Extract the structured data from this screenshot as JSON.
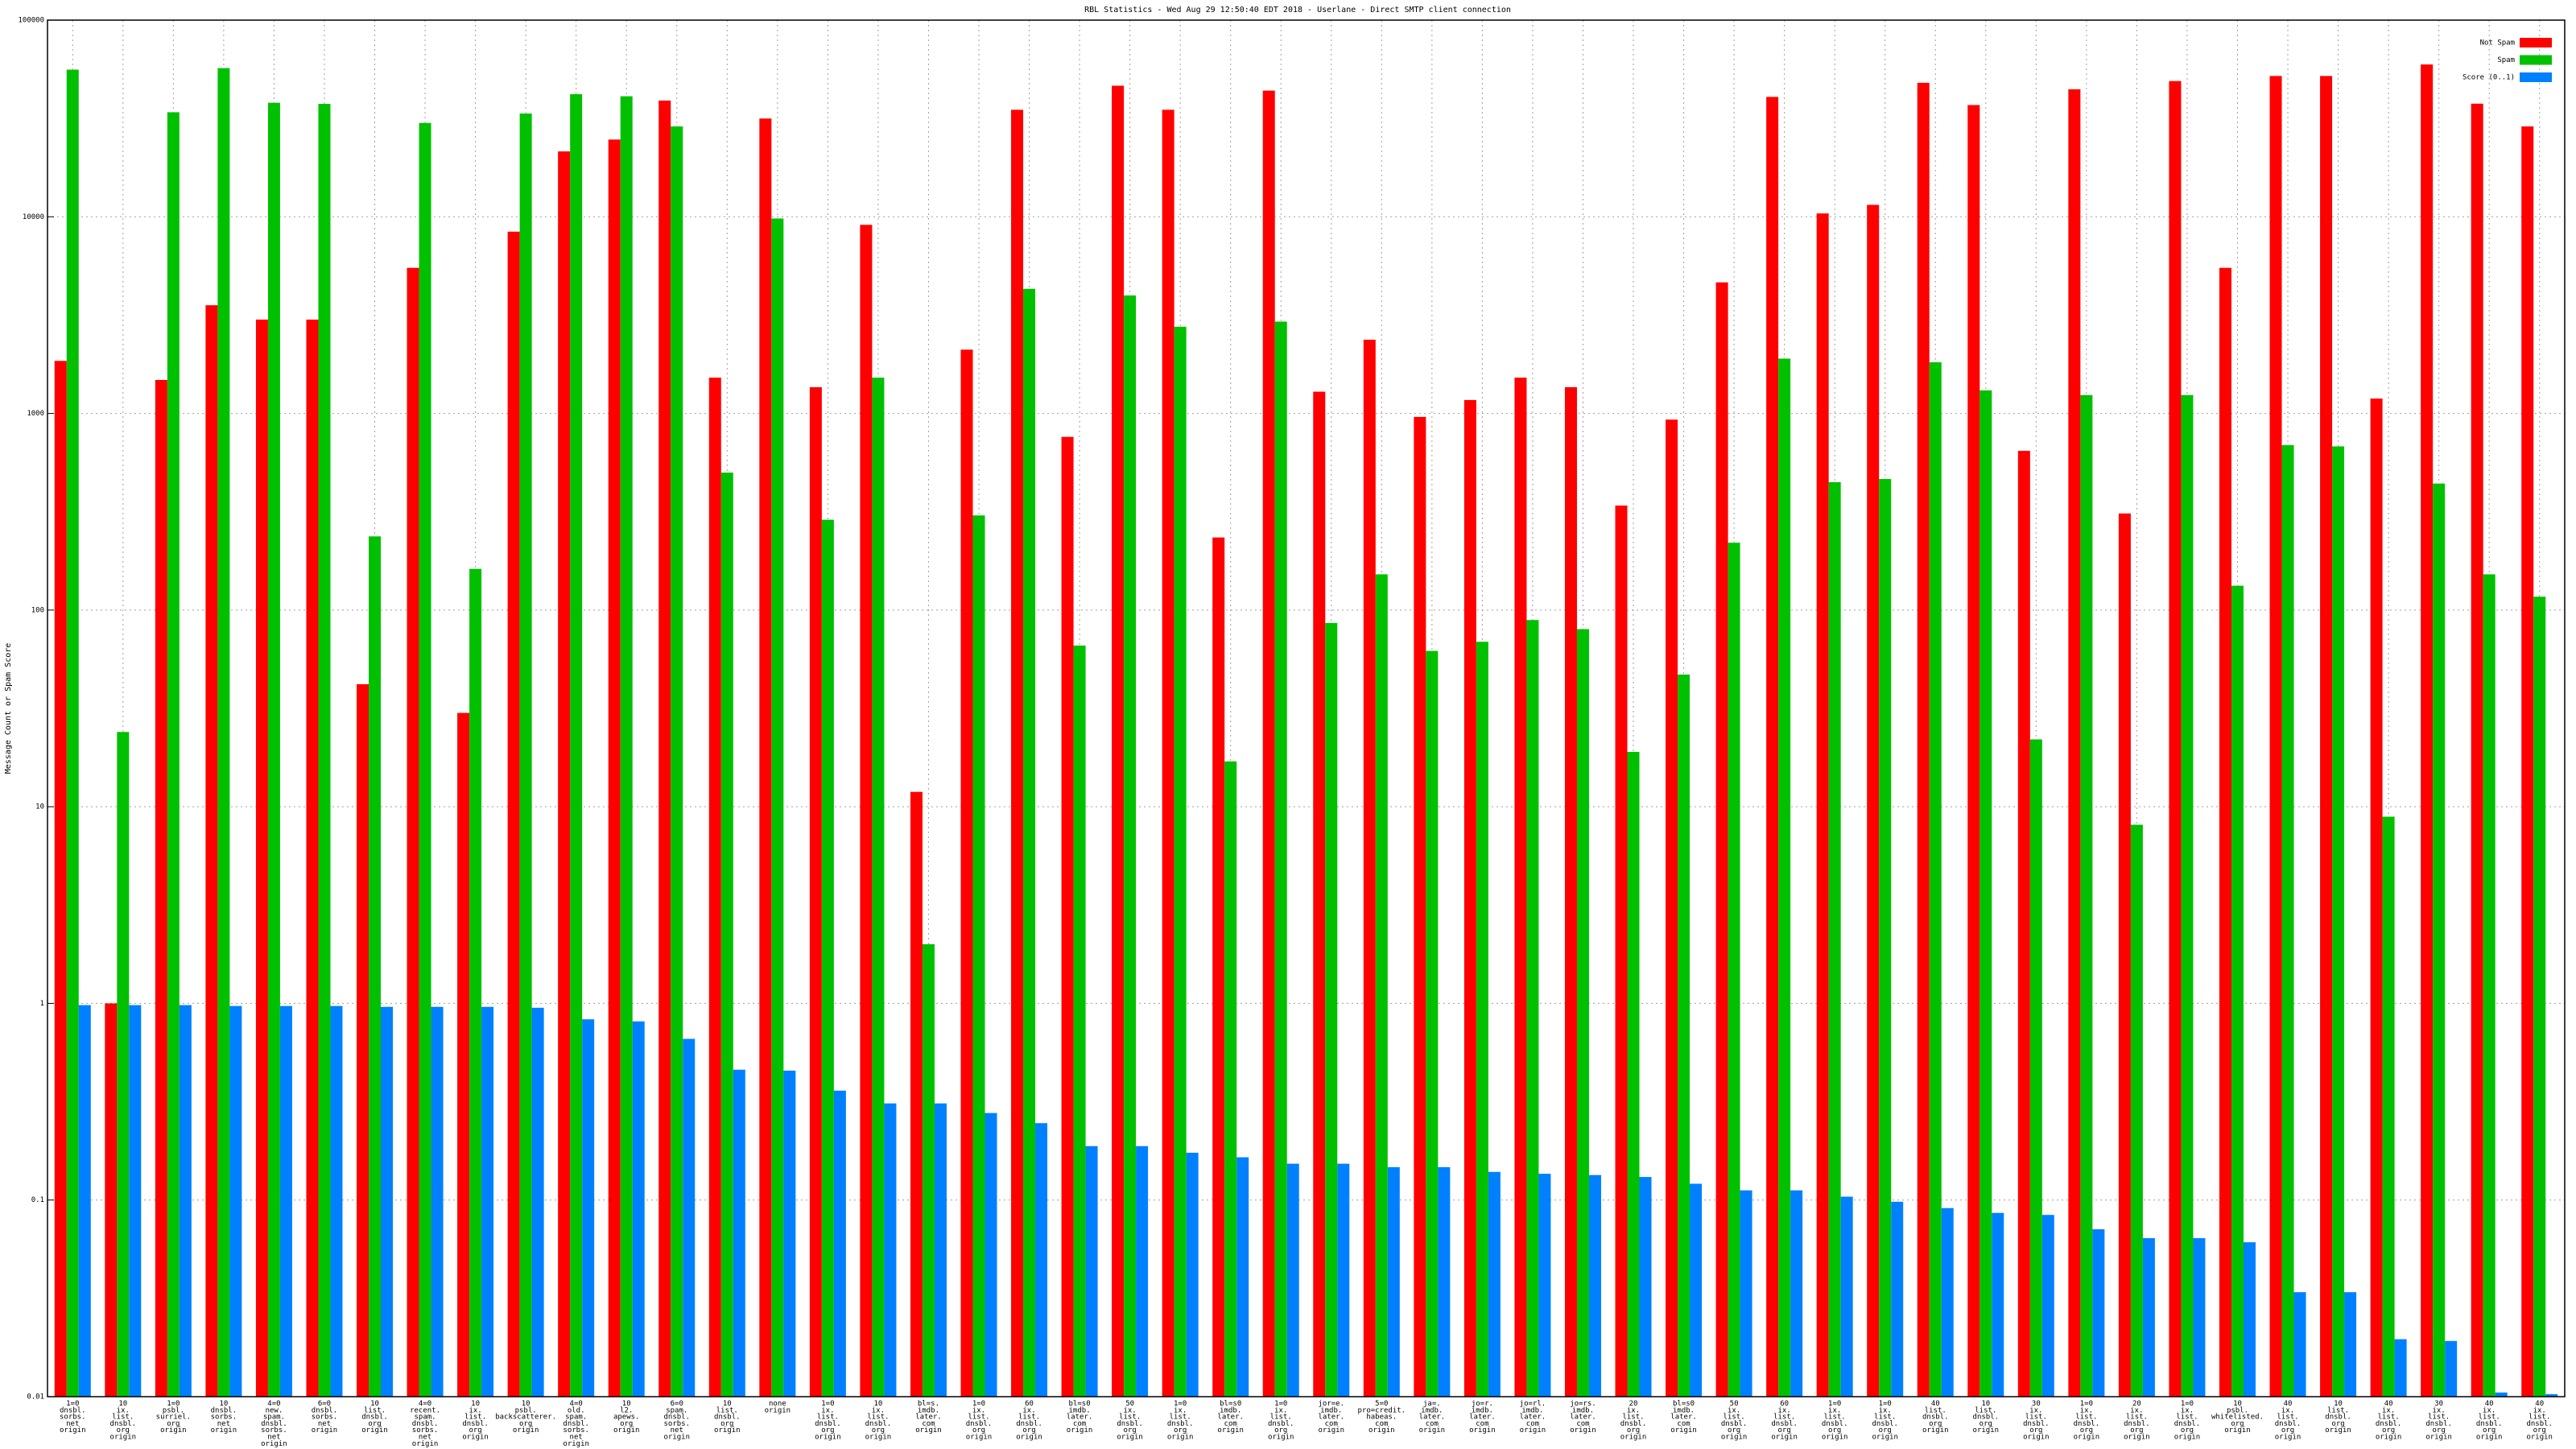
{
  "chart_data": {
    "type": "bar",
    "title": "RBL Statistics - Wed Aug 29 12:50:40 EDT 2018 - Userlane - Direct SMTP client connection",
    "y_label": "Message Count or Spam Score",
    "log_y": true,
    "grid": true,
    "legend_position": "top-right",
    "ylim": [
      0.01,
      100000
    ],
    "yticks": [
      0.01,
      0.1,
      1,
      10,
      100,
      1000,
      10000,
      100000
    ],
    "categories": [
      [
        "1=0",
        "dnsbl.",
        "sorbs.",
        "net",
        "origin"
      ],
      [
        "10",
        "ix.",
        "list.",
        "dnsbl.",
        "org",
        "origin"
      ],
      [
        "1=0",
        "psbl.",
        "surriel.",
        "org",
        "origin"
      ],
      [
        "10",
        "dnsbl.",
        "sorbs.",
        "net",
        "origin"
      ],
      [
        "4=0",
        "new.",
        "spam.",
        "dnsbl.",
        "sorbs.",
        "net",
        "origin"
      ],
      [
        "6=0",
        "dnsbl.",
        "sorbs.",
        "net",
        "origin"
      ],
      [
        "10",
        "list.",
        "dnsbl.",
        "org",
        "origin"
      ],
      [
        "4=0",
        "recent.",
        "spam.",
        "dnsbl.",
        "sorbs.",
        "net",
        "origin"
      ],
      [
        "10",
        "ix.",
        "list.",
        "dnsbl.",
        "org",
        "origin"
      ],
      [
        "10",
        "psbl.",
        "backscatterer.",
        "org",
        "origin"
      ],
      [
        "4=0",
        "old.",
        "spam.",
        "dnsbl.",
        "sorbs.",
        "net",
        "origin"
      ],
      [
        "10",
        "l2.",
        "apews.",
        "org",
        "origin"
      ],
      [
        "6=0",
        "spam.",
        "dnsbl.",
        "sorbs.",
        "net",
        "origin"
      ],
      [
        "10",
        "list.",
        "dnsbl.",
        "org",
        "origin"
      ],
      [
        "none",
        "origin"
      ],
      [
        "1=0",
        "ix.",
        "list.",
        "dnsbl.",
        "org",
        "origin"
      ],
      [
        "10",
        "ix.",
        "list.",
        "dnsbl.",
        "org",
        "origin"
      ],
      [
        "bl=s.",
        "imdb.",
        "later.",
        "com",
        "origin"
      ],
      [
        "1=0",
        "ix.",
        "list.",
        "dnsbl.",
        "org",
        "origin"
      ],
      [
        "60",
        "ix.",
        "list.",
        "dnsbl.",
        "org",
        "origin"
      ],
      [
        "bl=s0",
        "imdb.",
        "later.",
        "com",
        "origin"
      ],
      [
        "50",
        "ix.",
        "list.",
        "dnsbl.",
        "org",
        "origin"
      ],
      [
        "1=0",
        "ix.",
        "list.",
        "dnsbl.",
        "org",
        "origin"
      ],
      [
        "bl=s0",
        "imdb.",
        "later.",
        "com",
        "origin"
      ],
      [
        "1=0",
        "ix.",
        "list.",
        "dnsbl.",
        "org",
        "origin"
      ],
      [
        "jor=e.",
        "imdb.",
        "later.",
        "com",
        "origin"
      ],
      [
        "5=0",
        "pro=credit.",
        "habeas.",
        "com",
        "origin"
      ],
      [
        "ja=.",
        "imdb.",
        "later.",
        "com",
        "origin"
      ],
      [
        "jo=r.",
        "imdb.",
        "later.",
        "com",
        "origin"
      ],
      [
        "jo=rl.",
        "imdb.",
        "later.",
        "com",
        "origin"
      ],
      [
        "jo=rs.",
        "imdb.",
        "later.",
        "com",
        "origin"
      ],
      [
        "20",
        "ix.",
        "list.",
        "dnsbl.",
        "org",
        "origin"
      ],
      [
        "bl=s0",
        "imdb.",
        "later.",
        "com",
        "origin"
      ],
      [
        "50",
        "ix.",
        "list.",
        "dnsbl.",
        "org",
        "origin"
      ],
      [
        "60",
        "ix.",
        "list.",
        "dnsbl.",
        "org",
        "origin"
      ],
      [
        "1=0",
        "ix.",
        "list.",
        "dnsbl.",
        "org",
        "origin"
      ],
      [
        "1=0",
        "ix.",
        "list.",
        "dnsbl.",
        "org",
        "origin"
      ],
      [
        "40",
        "list.",
        "dnsbl.",
        "org",
        "origin"
      ],
      [
        "10",
        "list.",
        "dnsbl.",
        "org",
        "origin"
      ],
      [
        "30",
        "ix.",
        "list.",
        "dnsbl.",
        "org",
        "origin"
      ],
      [
        "1=0",
        "ix.",
        "list.",
        "dnsbl.",
        "org",
        "origin"
      ],
      [
        "20",
        "ix.",
        "list.",
        "dnsbl.",
        "org",
        "origin"
      ],
      [
        "1=0",
        "ix.",
        "list.",
        "dnsbl.",
        "org",
        "origin"
      ],
      [
        "10",
        "psbl.",
        "whitelisted.",
        "org",
        "origin"
      ],
      [
        "40",
        "ix.",
        "list.",
        "dnsbl.",
        "org",
        "origin"
      ],
      [
        "10",
        "list.",
        "dnsbl.",
        "org",
        "origin"
      ],
      [
        "40",
        "ix.",
        "list.",
        "dnsbl.",
        "org",
        "origin"
      ],
      [
        "30",
        "ix.",
        "list.",
        "dnsbl.",
        "org",
        "origin"
      ],
      [
        "40",
        "ix.",
        "list.",
        "dnsbl.",
        "org",
        "origin"
      ],
      [
        "40",
        "ix.",
        "list.",
        "dnsbl.",
        "org",
        "origin"
      ]
    ],
    "series": [
      {
        "name": "Not Spam",
        "color": "#ff0000",
        "values": [
          1850,
          1,
          1480,
          3550,
          3000,
          3000,
          42,
          5500,
          30,
          8400,
          21500,
          24700,
          39000,
          1520,
          31600,
          1360,
          9100,
          11.9,
          2110,
          35000,
          760,
          46400,
          35000,
          234,
          43800,
          1290,
          2370,
          960,
          1170,
          1520,
          1360,
          340,
          930,
          4640,
          40700,
          10400,
          11500,
          48000,
          37000,
          645,
          44500,
          310,
          49000,
          5500,
          52000,
          52000,
          1190,
          59500,
          37600,
          28800
        ]
      },
      {
        "name": "Spam",
        "color": "#00c000",
        "values": [
          56000,
          24,
          34000,
          57000,
          38000,
          37500,
          237,
          30000,
          162,
          33500,
          42000,
          41000,
          28800,
          500,
          9800,
          288,
          1520,
          2.0,
          303,
          4300,
          66,
          3980,
          2760,
          17,
          2930,
          86,
          152,
          62,
          69,
          89,
          80,
          19,
          47,
          220,
          1900,
          447,
          464,
          1820,
          1310,
          22,
          1240,
          8.1,
          1240,
          133,
          690,
          680,
          8.9,
          440,
          152,
          117
        ]
      },
      {
        "name": "Score (0..1)",
        "color": "#0080ff",
        "values": [
          0.98,
          0.98,
          0.98,
          0.97,
          0.97,
          0.97,
          0.96,
          0.96,
          0.96,
          0.95,
          0.83,
          0.81,
          0.66,
          0.46,
          0.455,
          0.36,
          0.31,
          0.31,
          0.277,
          0.246,
          0.188,
          0.188,
          0.174,
          0.165,
          0.153,
          0.153,
          0.147,
          0.147,
          0.139,
          0.136,
          0.134,
          0.131,
          0.121,
          0.112,
          0.112,
          0.104,
          0.098,
          0.091,
          0.086,
          0.084,
          0.071,
          0.064,
          0.064,
          0.061,
          0.034,
          0.034,
          0.0196,
          0.0192,
          0.0105,
          0.0103
        ]
      }
    ]
  }
}
